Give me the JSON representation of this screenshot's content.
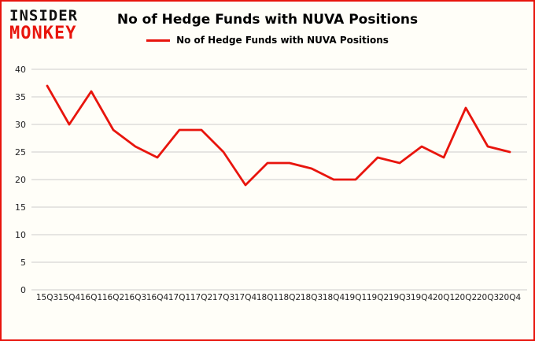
{
  "logo": {
    "line1": "INSIDER",
    "line2": "MONKEY"
  },
  "header": {
    "title": "No of Hedge Funds with NUVA Positions"
  },
  "legend": {
    "label": "No of Hedge Funds with NUVA Positions"
  },
  "colors": {
    "line": "#e8150d",
    "frame_border": "#e8150d",
    "grid": "#cccccc",
    "tick_text": "#222222",
    "background": "#fffef8",
    "logo_insider": "#111111",
    "logo_monkey": "#e8150d"
  },
  "chart_data": {
    "type": "line",
    "title": "No of Hedge Funds with NUVA Positions",
    "categories": [
      "15Q3",
      "15Q4",
      "16Q1",
      "16Q2",
      "16Q3",
      "16Q4",
      "17Q1",
      "17Q2",
      "17Q3",
      "17Q4",
      "18Q1",
      "18Q2",
      "18Q3",
      "18Q4",
      "19Q1",
      "19Q2",
      "19Q3",
      "19Q4",
      "20Q1",
      "20Q2",
      "20Q3",
      "20Q4"
    ],
    "series": [
      {
        "name": "No of Hedge Funds with NUVA Positions",
        "values": [
          37,
          30,
          36,
          29,
          26,
          24,
          29,
          29,
          25,
          19,
          23,
          23,
          22,
          20,
          20,
          24,
          23,
          26,
          24,
          33,
          26,
          25
        ]
      }
    ],
    "xlabel": "",
    "ylabel": "",
    "ylim": [
      0,
      40
    ],
    "yticks": [
      0,
      5,
      10,
      15,
      20,
      25,
      30,
      35,
      40
    ],
    "grid": true,
    "legend_position": "top-center"
  }
}
